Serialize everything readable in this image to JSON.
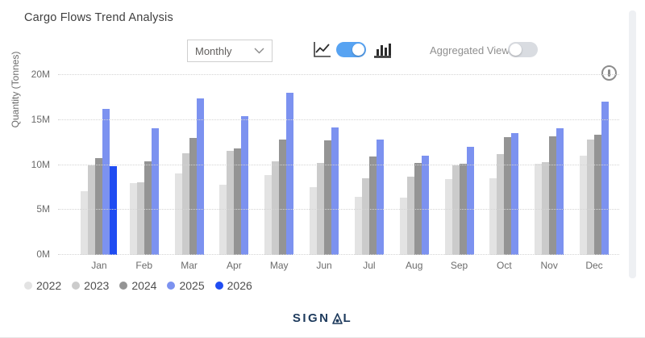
{
  "header": {
    "title": "Cargo Flows Trend Analysis"
  },
  "toolbar": {
    "frequency_selected": "Monthly",
    "chart_type_toggle_state": "on",
    "icons": [
      "line-chart-icon",
      "bar-chart-icon"
    ],
    "aggregated_label": "Aggregated View",
    "aggregated_toggle_state": "off"
  },
  "chart_data": {
    "type": "bar",
    "title": "Cargo Flows Trend Analysis",
    "ylabel": "Quantity (Tonnes)",
    "values_unit": "million tonnes",
    "ylim": [
      0,
      20
    ],
    "yticks": [
      "0M",
      "5M",
      "10M",
      "15M",
      "20M"
    ],
    "grid": "dotted-horizontal",
    "legend_position": "bottom-left",
    "categories": [
      "Jan",
      "Feb",
      "Mar",
      "Apr",
      "May",
      "Jun",
      "Jul",
      "Aug",
      "Sep",
      "Oct",
      "Nov",
      "Dec"
    ],
    "series": [
      {
        "name": "2022",
        "color": "#e3e3e3",
        "values": [
          7.1,
          8.0,
          9.1,
          7.8,
          8.9,
          7.5,
          6.5,
          6.4,
          8.4,
          8.5,
          10.1,
          11.0
        ]
      },
      {
        "name": "2023",
        "color": "#cbcbcb",
        "values": [
          10.0,
          8.1,
          11.3,
          11.6,
          10.4,
          10.2,
          8.5,
          8.7,
          10.0,
          11.2,
          10.3,
          12.8
        ]
      },
      {
        "name": "2024",
        "color": "#949494",
        "values": [
          10.8,
          10.4,
          13.0,
          11.8,
          12.8,
          12.7,
          10.9,
          10.2,
          10.1,
          13.1,
          13.2,
          13.4
        ]
      },
      {
        "name": "2025",
        "color": "#7c92f0",
        "values": [
          16.2,
          14.1,
          17.4,
          15.4,
          18.0,
          14.2,
          12.8,
          11.0,
          12.0,
          13.5,
          14.1,
          17.0
        ]
      },
      {
        "name": "2026",
        "color": "#1f4cf2",
        "values": [
          9.9,
          null,
          null,
          null,
          null,
          null,
          null,
          null,
          null,
          null,
          null,
          null
        ]
      }
    ]
  },
  "footer": {
    "logo_text": "SIGNAL"
  }
}
